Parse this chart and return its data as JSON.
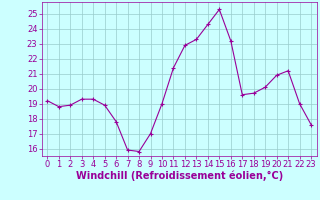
{
  "x": [
    0,
    1,
    2,
    3,
    4,
    5,
    6,
    7,
    8,
    9,
    10,
    11,
    12,
    13,
    14,
    15,
    16,
    17,
    18,
    19,
    20,
    21,
    22,
    23
  ],
  "y": [
    19.2,
    18.8,
    18.9,
    19.3,
    19.3,
    18.9,
    17.8,
    15.9,
    15.8,
    17.0,
    19.0,
    21.4,
    22.9,
    23.3,
    24.3,
    25.3,
    23.2,
    19.6,
    19.7,
    20.1,
    20.9,
    21.2,
    19.0,
    17.6
  ],
  "line_color": "#990099",
  "marker": "+",
  "marker_size": 3,
  "bg_color": "#ccffff",
  "grid_color": "#99cccc",
  "xlabel": "Windchill (Refroidissement éolien,°C)",
  "xlabel_color": "#990099",
  "ylim": [
    15.5,
    25.8
  ],
  "xlim": [
    -0.5,
    23.5
  ],
  "yticks": [
    16,
    17,
    18,
    19,
    20,
    21,
    22,
    23,
    24,
    25
  ],
  "xticks": [
    0,
    1,
    2,
    3,
    4,
    5,
    6,
    7,
    8,
    9,
    10,
    11,
    12,
    13,
    14,
    15,
    16,
    17,
    18,
    19,
    20,
    21,
    22,
    23
  ],
  "tick_color": "#990099",
  "spine_color": "#990099",
  "tick_fontsize": 6,
  "xlabel_fontsize": 7
}
